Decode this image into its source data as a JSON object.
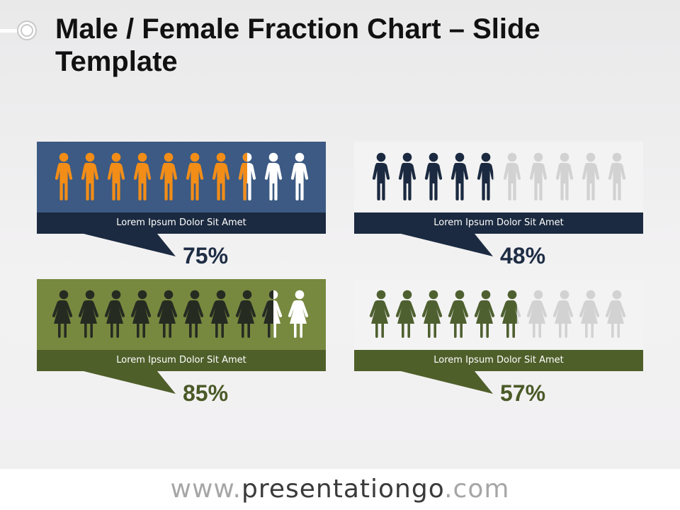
{
  "title": "Male / Female Fraction Chart – Slide Template",
  "footer": {
    "prefix": "www.",
    "brand": "presentationgo",
    "suffix": ".com"
  },
  "chart_data": [
    {
      "type": "pictograph",
      "icon": "male-figure",
      "icon_count": 10,
      "value": 75,
      "value_label": "75%",
      "caption": "Lorem Ipsum Dolor Sit Amet",
      "filled_color": "#f28d18",
      "unfilled_color": "#ffffff",
      "panel_color": "#3c5a83",
      "caption_color": "#1b2a40",
      "value_color": "#1e2d44"
    },
    {
      "type": "pictograph",
      "icon": "male-figure",
      "icon_count": 10,
      "value": 48,
      "value_label": "48%",
      "caption": "Lorem Ipsum Dolor Sit Amet",
      "filled_color": "#1b2a40",
      "unfilled_color": "#d2d2d2",
      "panel_color": "#f3f3f3",
      "caption_color": "#1b2a40",
      "value_color": "#1e2d44"
    },
    {
      "type": "pictograph",
      "icon": "female-figure",
      "icon_count": 10,
      "value": 85,
      "value_label": "85%",
      "caption": "Lorem Ipsum Dolor Sit Amet",
      "filled_color": "#262b22",
      "unfilled_color": "#ffffff",
      "panel_color": "#77893f",
      "caption_color": "#4f5f2a",
      "value_color": "#4a5a27"
    },
    {
      "type": "pictograph",
      "icon": "female-figure",
      "icon_count": 10,
      "value": 57,
      "value_label": "57%",
      "caption": "Lorem Ipsum Dolor Sit Amet",
      "filled_color": "#4f6030",
      "unfilled_color": "#d2d2d2",
      "panel_color": "#f3f3f3",
      "caption_color": "#4f5f2a",
      "value_color": "#4a5a27"
    }
  ]
}
